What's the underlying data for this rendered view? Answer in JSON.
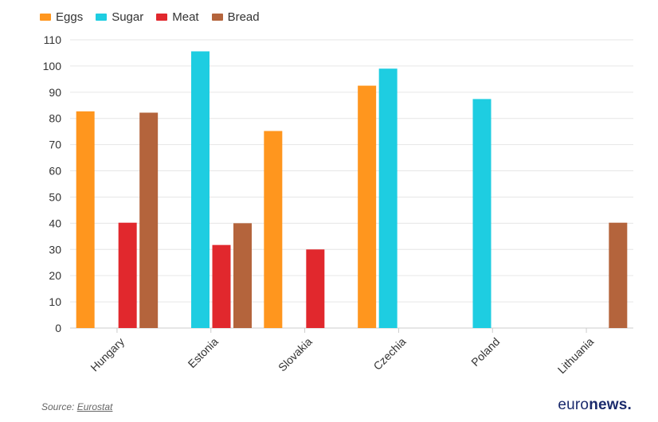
{
  "legend": [
    {
      "name": "Eggs",
      "color": "#ff961e"
    },
    {
      "name": "Sugar",
      "color": "#1ecde1"
    },
    {
      "name": "Meat",
      "color": "#e1282d"
    },
    {
      "name": "Bread",
      "color": "#b4643c"
    }
  ],
  "chart_data": {
    "type": "bar",
    "categories": [
      "Hungary",
      "Estonia",
      "Slovakia",
      "Czechia",
      "Poland",
      "Lithuania"
    ],
    "series": [
      {
        "name": "Eggs",
        "color": "#ff961e",
        "values": [
          82.7,
          null,
          75.2,
          92.5,
          null,
          null
        ]
      },
      {
        "name": "Sugar",
        "color": "#1ecde1",
        "values": [
          null,
          105.6,
          null,
          99.0,
          87.4,
          null
        ]
      },
      {
        "name": "Meat",
        "color": "#e1282d",
        "values": [
          40.2,
          31.7,
          30.0,
          null,
          null,
          null
        ]
      },
      {
        "name": "Bread",
        "color": "#b4643c",
        "values": [
          82.2,
          40.0,
          null,
          null,
          null,
          40.2
        ]
      }
    ],
    "yticks": [
      0,
      10,
      20,
      30,
      40,
      50,
      60,
      70,
      80,
      90,
      100,
      110
    ],
    "ylim": [
      0,
      110
    ],
    "grid": true,
    "legend_position": "top-left"
  },
  "footer": {
    "source_prefix": "Source: ",
    "source_link": "Eurostat",
    "brand_light": "euro",
    "brand_bold": "news."
  }
}
